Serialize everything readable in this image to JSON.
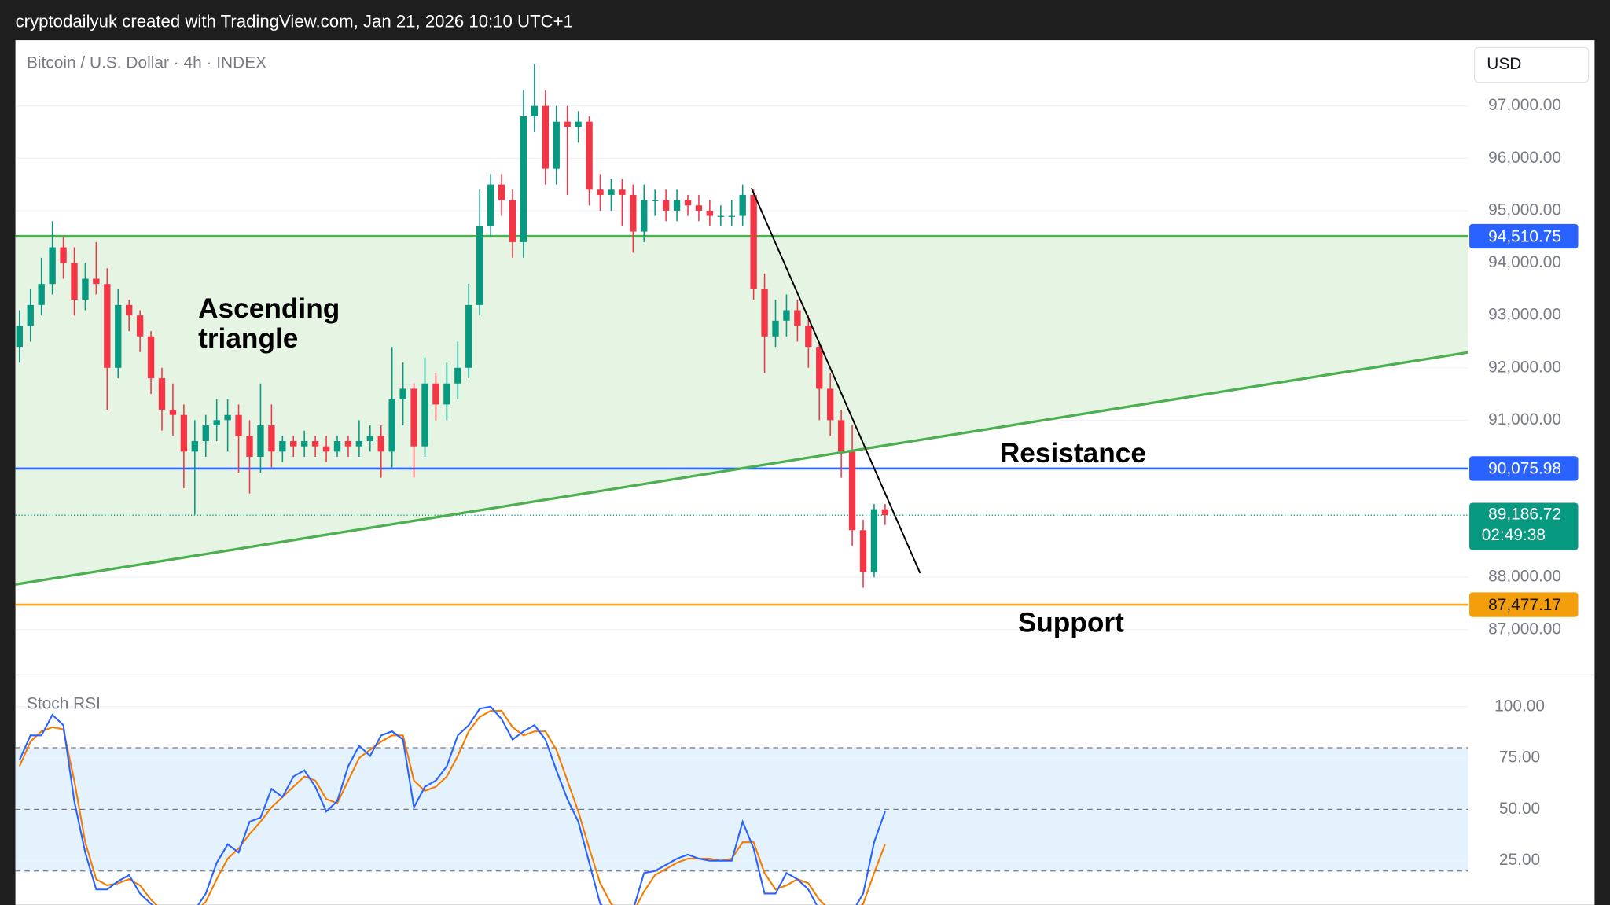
{
  "header": "cryptodailyuk created with TradingView.com, Jan 21, 2026 10:10 UTC+1",
  "chart_data": {
    "type": "candlestick",
    "title": "Bitcoin / U.S. Dollar · 4h · INDEX",
    "currency": "USD",
    "up_color": "#089981",
    "down_color": "#f23645",
    "open": [
      92400,
      92800,
      93200,
      93600,
      94300,
      94000,
      93300,
      93700,
      93600,
      92000,
      93200,
      93000,
      92600,
      91800,
      91200,
      91100,
      90400,
      90600,
      90900,
      91000,
      91100,
      90700,
      90300,
      90900,
      90400,
      90600,
      90500,
      90600,
      90500,
      90400,
      90600,
      90500,
      90600,
      90700,
      90400,
      91400,
      91600,
      90500,
      91700,
      91300,
      91700,
      92000,
      93200,
      94700,
      95500,
      95200,
      94400,
      96800,
      97000,
      95800,
      96700,
      96600,
      96700,
      95400,
      95300,
      95400,
      95300,
      94600,
      95200,
      95200,
      95000,
      95200,
      95100,
      95000,
      94900,
      94900,
      94900,
      95300,
      93500,
      92600,
      92900,
      93100,
      92800,
      92400,
      91600,
      91000,
      90400,
      88900,
      88100,
      89300
    ],
    "high": [
      93100,
      93500,
      94100,
      94800,
      94500,
      94300,
      94000,
      94400,
      93900,
      93500,
      93300,
      93100,
      92700,
      92000,
      91700,
      91300,
      91000,
      91100,
      91400,
      91400,
      91300,
      91000,
      91700,
      91300,
      90700,
      90700,
      90800,
      90700,
      90700,
      90700,
      90700,
      91000,
      90900,
      90900,
      92400,
      92100,
      91700,
      92200,
      91900,
      92100,
      92500,
      93600,
      95400,
      95700,
      95700,
      95400,
      97300,
      97800,
      97300,
      97000,
      97000,
      96900,
      96800,
      95700,
      95600,
      95600,
      95500,
      95500,
      95400,
      95400,
      95400,
      95300,
      95300,
      95200,
      95100,
      95200,
      95500,
      95400,
      93800,
      93300,
      93400,
      93300,
      93000,
      92500,
      91900,
      91200,
      90900,
      89100,
      89400,
      89400
    ],
    "low": [
      92100,
      92500,
      93000,
      93400,
      93700,
      93000,
      93100,
      93400,
      91200,
      91800,
      92700,
      92300,
      91500,
      90800,
      90700,
      89700,
      89200,
      90300,
      90600,
      90400,
      90000,
      89600,
      90000,
      90100,
      90200,
      90300,
      90300,
      90300,
      90200,
      90300,
      90300,
      90300,
      90400,
      89900,
      90100,
      90900,
      89900,
      90300,
      91000,
      91000,
      91400,
      91800,
      93000,
      94500,
      94900,
      94100,
      94100,
      96500,
      95500,
      95500,
      95300,
      96300,
      95100,
      95000,
      95000,
      94700,
      94200,
      94400,
      94900,
      94800,
      94800,
      94900,
      94800,
      94700,
      94700,
      94700,
      94700,
      93300,
      91900,
      92400,
      92600,
      92500,
      92000,
      91000,
      90700,
      89900,
      88600,
      87800,
      88000,
      89000
    ],
    "close": [
      92800,
      93200,
      93600,
      94300,
      94000,
      93300,
      93700,
      93600,
      92000,
      93200,
      93000,
      92600,
      91800,
      91200,
      91100,
      90400,
      90600,
      90900,
      91000,
      91100,
      90700,
      90300,
      90900,
      90400,
      90600,
      90500,
      90600,
      90500,
      90400,
      90600,
      90500,
      90600,
      90700,
      90400,
      91400,
      91600,
      90500,
      91700,
      91300,
      91700,
      92000,
      93200,
      94700,
      95500,
      95200,
      94400,
      96800,
      97000,
      95800,
      96700,
      96600,
      96700,
      95400,
      95300,
      95400,
      95300,
      94600,
      95200,
      95200,
      95000,
      95200,
      95100,
      95000,
      94900,
      94900,
      94900,
      95300,
      93500,
      92600,
      92900,
      93100,
      92800,
      92400,
      91600,
      91000,
      90400,
      88900,
      88100,
      89300,
      89187
    ],
    "ylim": [
      86275,
      98255
    ],
    "yticks": [
      {
        "value": 87000,
        "label": "87,000.00"
      },
      {
        "value": 88000,
        "label": "88,000.00"
      },
      {
        "value": 91000,
        "label": "91,000.00"
      },
      {
        "value": 92000,
        "label": "92,000.00"
      },
      {
        "value": 93000,
        "label": "93,000.00"
      },
      {
        "value": 94000,
        "label": "94,000.00"
      },
      {
        "value": 95000,
        "label": "95,000.00"
      },
      {
        "value": 96000,
        "label": "96,000.00"
      },
      {
        "value": 97000,
        "label": "97,000.00"
      }
    ],
    "grid": true,
    "levels": [
      {
        "value": 94510.75,
        "label": "94,510.75",
        "color": "#4caf50",
        "label_color": "#2962ff"
      },
      {
        "value": 90075.98,
        "label": "90,075.98",
        "color": "#2962ff",
        "label_color": "#2962ff",
        "annotation": "Resistance"
      },
      {
        "value": 87477.17,
        "label": "87,477.17",
        "color": "#f5a623",
        "label_color": "#f59e0b",
        "annotation": "Support"
      }
    ],
    "current": {
      "value": 89186.72,
      "label": "89,186.72",
      "countdown": "02:49:38",
      "color": "#089981"
    },
    "trendlines": [
      {
        "x": [
          -0.4,
          132.2
        ],
        "y": [
          87863,
          92294
        ],
        "color": "#4caf50"
      },
      {
        "x": [
          66.8,
          82.2
        ],
        "y": [
          95431,
          88078
        ],
        "color": "#000000"
      }
    ],
    "zone_color": "#e6f4e3",
    "pattern_label": [
      "Ascending",
      "triangle"
    ],
    "stoch": {
      "title": "Stoch RSI",
      "k": {
        "color": "#2962ff",
        "values": [
          74,
          86,
          86,
          96,
          91,
          54,
          29,
          11,
          11,
          15,
          18,
          9,
          4,
          0,
          0,
          0,
          1,
          9,
          24,
          33,
          29,
          44,
          46,
          60,
          56,
          66,
          69,
          61,
          49,
          54,
          71,
          81,
          76,
          86,
          88,
          84,
          51,
          61,
          64,
          71,
          86,
          91,
          99,
          100,
          94,
          84,
          88,
          91,
          84,
          69,
          55,
          44,
          24,
          4,
          0,
          0,
          1,
          19,
          20,
          23,
          26,
          28,
          26,
          25,
          25,
          25,
          44,
          31,
          9,
          9,
          19,
          16,
          11,
          1,
          0,
          0,
          0,
          9,
          34,
          49
        ]
      },
      "d": {
        "color": "#f57c00",
        "values": [
          71,
          83,
          88,
          90,
          89,
          64,
          34,
          16,
          13,
          14,
          16,
          13,
          6,
          1,
          0,
          0,
          0,
          5,
          16,
          26,
          31,
          38,
          44,
          51,
          56,
          61,
          66,
          64,
          55,
          53,
          64,
          75,
          79,
          83,
          86,
          86,
          64,
          59,
          61,
          66,
          76,
          88,
          95,
          98,
          98,
          90,
          86,
          88,
          88,
          79,
          64,
          49,
          31,
          14,
          4,
          0,
          0,
          10,
          18,
          21,
          24,
          26,
          26,
          26,
          25,
          26,
          34,
          34,
          19,
          11,
          13,
          16,
          14,
          6,
          1,
          0,
          0,
          4,
          19,
          33
        ]
      },
      "ylim": [
        3.5,
        111.5
      ],
      "yticks": [
        {
          "value": 100,
          "label": "100.00"
        },
        {
          "value": 75,
          "label": "75.00"
        },
        {
          "value": 50,
          "label": "50.00"
        },
        {
          "value": 25,
          "label": "25.00"
        }
      ],
      "upper_band": 80,
      "mid_band": 50,
      "lower_band": 20,
      "band_color": "#e3f2fd"
    }
  }
}
